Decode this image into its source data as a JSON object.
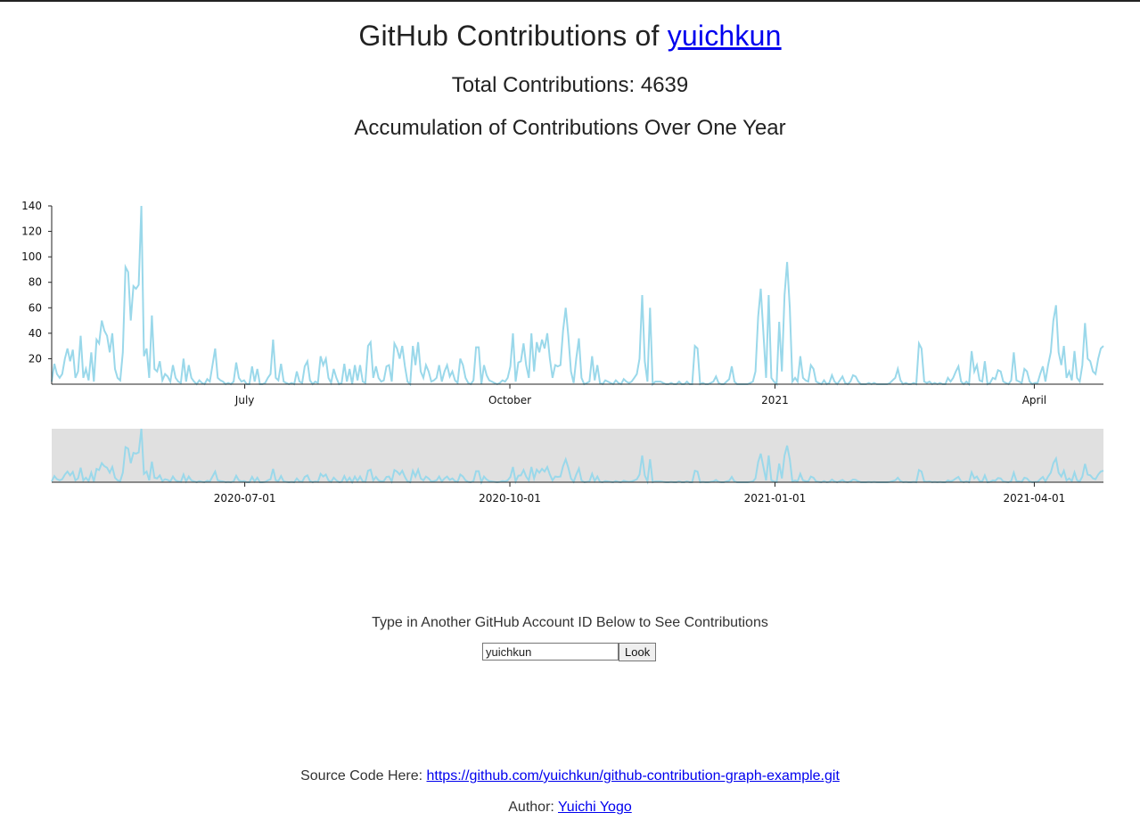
{
  "header": {
    "title_prefix": "GitHub Contributions of ",
    "username": "yuichkun",
    "total_label": "Total Contributions: 4639",
    "subtitle": "Accumulation of Contributions Over One Year"
  },
  "search": {
    "prompt": "Type in Another GitHub Account ID Below to See Contributions",
    "input_value": "yuichkun",
    "button_label": "Look"
  },
  "footer": {
    "source_label": "Source Code Here: ",
    "source_link": "https://github.com/yuichkun/github-contribution-graph-example.git",
    "author_label": "Author: ",
    "author_link": "Yuichi Yogo"
  },
  "chart_data": {
    "type": "line",
    "title": "",
    "xlabel": "",
    "ylabel": "",
    "line_color": "#9ad8ea",
    "context_background": "#e0e0e0",
    "ylim": [
      0,
      140
    ],
    "y_ticks": [
      20,
      40,
      60,
      80,
      100,
      120,
      140
    ],
    "focus_x_tick_labels": [
      "July",
      "October",
      "2021",
      "April"
    ],
    "context_x_tick_labels": [
      "2020-07-01",
      "2020-10-01",
      "2021-01-01",
      "2021-04-01"
    ],
    "x_domain": [
      "2020-04-25",
      "2021-04-25"
    ],
    "x_tick_dates": [
      "2020-07-01",
      "2020-10-01",
      "2021-01-01",
      "2021-04-01"
    ],
    "key_points": [
      {
        "x": "2020-04-25",
        "y": 2
      },
      {
        "x": "2020-05-07",
        "y": 38
      },
      {
        "x": "2020-05-12",
        "y": 0
      },
      {
        "x": "2020-05-16",
        "y": 35
      },
      {
        "x": "2020-05-18",
        "y": 50
      },
      {
        "x": "2020-05-22",
        "y": 35
      },
      {
        "x": "2020-05-26",
        "y": 12
      },
      {
        "x": "2020-05-30",
        "y": 92
      },
      {
        "x": "2020-06-01",
        "y": 50
      },
      {
        "x": "2020-06-03",
        "y": 77
      },
      {
        "x": "2020-06-05",
        "y": 75
      },
      {
        "x": "2020-06-06",
        "y": 140
      },
      {
        "x": "2020-06-07",
        "y": 22
      },
      {
        "x": "2020-06-09",
        "y": 5
      },
      {
        "x": "2020-06-10",
        "y": 54
      },
      {
        "x": "2020-06-11",
        "y": 12
      },
      {
        "x": "2020-06-26",
        "y": 28
      },
      {
        "x": "2020-08-09",
        "y": 35
      },
      {
        "x": "2020-09-06",
        "y": 33
      },
      {
        "x": "2020-09-12",
        "y": 31
      },
      {
        "x": "2020-11-12",
        "y": 41
      },
      {
        "x": "2020-11-20",
        "y": 60
      },
      {
        "x": "2020-11-24",
        "y": 35
      },
      {
        "x": "2020-12-20",
        "y": 70
      },
      {
        "x": "2020-12-22",
        "y": 60
      },
      {
        "x": "2021-01-01",
        "y": 30
      },
      {
        "x": "2021-01-22",
        "y": 75
      },
      {
        "x": "2021-01-24",
        "y": 70
      },
      {
        "x": "2021-01-30",
        "y": 96
      },
      {
        "x": "2021-02-02",
        "y": 22
      },
      {
        "x": "2021-03-08",
        "y": 32
      },
      {
        "x": "2021-03-29",
        "y": 26
      },
      {
        "x": "2021-04-04",
        "y": 25
      },
      {
        "x": "2021-04-14",
        "y": 62
      },
      {
        "x": "2021-04-22",
        "y": 48
      },
      {
        "x": "2021-04-25",
        "y": 30
      }
    ],
    "values": [
      2,
      16,
      8,
      5,
      8,
      20,
      28,
      18,
      27,
      5,
      10,
      38,
      5,
      12,
      3,
      25,
      2,
      35,
      32,
      50,
      42,
      38,
      25,
      40,
      12,
      5,
      3,
      25,
      92,
      88,
      50,
      77,
      75,
      78,
      140,
      22,
      28,
      5,
      54,
      12,
      10,
      18,
      3,
      8,
      6,
      2,
      15,
      5,
      2,
      1,
      20,
      2,
      15,
      5,
      2,
      0,
      3,
      1,
      0,
      4,
      2,
      15,
      28,
      5,
      3,
      2,
      0,
      1,
      0,
      2,
      17,
      5,
      2,
      3,
      0,
      0,
      14,
      2,
      12,
      0,
      0,
      1,
      5,
      8,
      35,
      5,
      3,
      16,
      2,
      1,
      0,
      1,
      0,
      10,
      2,
      1,
      14,
      18,
      3,
      0,
      2,
      1,
      22,
      15,
      20,
      5,
      1,
      12,
      5,
      0,
      1,
      16,
      2,
      12,
      0,
      15,
      3,
      15,
      2,
      1,
      30,
      33,
      5,
      14,
      5,
      2,
      3,
      14,
      15,
      2,
      32,
      28,
      20,
      30,
      14,
      2,
      0,
      30,
      15,
      33,
      10,
      5,
      15,
      10,
      2,
      3,
      5,
      15,
      2,
      10,
      15,
      6,
      10,
      3,
      1,
      20,
      15,
      5,
      1,
      0,
      3,
      29,
      29,
      0,
      15,
      7,
      3,
      2,
      1,
      0,
      1,
      3,
      2,
      5,
      14,
      40,
      2,
      17,
      18,
      32,
      15,
      5,
      40,
      10,
      33,
      25,
      35,
      28,
      40,
      20,
      5,
      15,
      14,
      15,
      42,
      60,
      38,
      10,
      1,
      20,
      36,
      5,
      0,
      1,
      2,
      22,
      3,
      15,
      1,
      0,
      3,
      2,
      1,
      0,
      3,
      1,
      0,
      4,
      2,
      1,
      2,
      5,
      8,
      20,
      70,
      18,
      2,
      60,
      0,
      2,
      2,
      2,
      1,
      0,
      0,
      1,
      0,
      0,
      2,
      0,
      0,
      2,
      0,
      0,
      30,
      28,
      0,
      1,
      0,
      0,
      1,
      2,
      6,
      1,
      0,
      0,
      2,
      4,
      14,
      2,
      0,
      0,
      0,
      0,
      0,
      1,
      2,
      10,
      53,
      75,
      40,
      5,
      70,
      5,
      2,
      0,
      49,
      10,
      70,
      96,
      60,
      2,
      5,
      2,
      22,
      5,
      3,
      2,
      15,
      12,
      2,
      1,
      0,
      3,
      0,
      1,
      7,
      2,
      0,
      3,
      6,
      1,
      0,
      2,
      7,
      6,
      2,
      0,
      0,
      0,
      1,
      0,
      1,
      0,
      0,
      0,
      0,
      0,
      1,
      3,
      5,
      12,
      3,
      0,
      1,
      0,
      0,
      1,
      0,
      32,
      28,
      2,
      1,
      2,
      0,
      1,
      0,
      1,
      0,
      0,
      5,
      2,
      5,
      10,
      14,
      2,
      0,
      2,
      0,
      26,
      10,
      15,
      3,
      2,
      18,
      0,
      1,
      5,
      4,
      11,
      10,
      2,
      1,
      0,
      3,
      25,
      3,
      2,
      1,
      12,
      10,
      2,
      0,
      1,
      1,
      8,
      14,
      2,
      15,
      25,
      50,
      62,
      25,
      15,
      30,
      5,
      10,
      3,
      26,
      5,
      2,
      15,
      48,
      20,
      18,
      10,
      8,
      20,
      28,
      30
    ]
  }
}
